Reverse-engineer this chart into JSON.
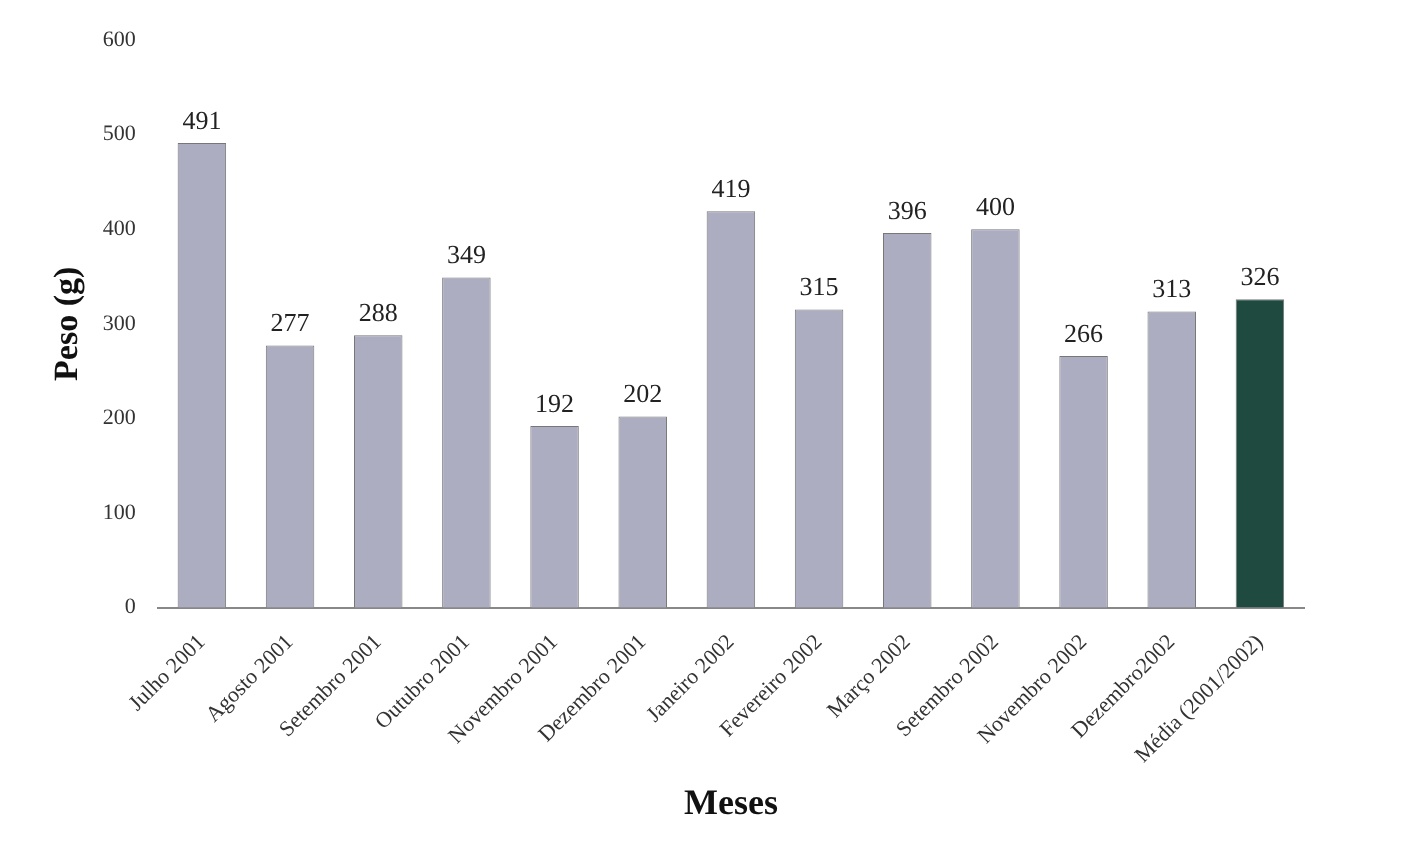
{
  "chart_data": {
    "type": "bar",
    "xlabel": "Meses",
    "ylabel": "Peso (g)",
    "categories": [
      "Julho 2001",
      "Agosto 2001",
      "Setembro 2001",
      "Outubro 2001",
      "Novembro 2001",
      "Dezembro 2001",
      "Janeiro 2002",
      "Fevereiro 2002",
      "Março 2002",
      "Setembro 2002",
      "Novembro 2002",
      "Dezembro2002",
      "Média (2001/2002)"
    ],
    "values": [
      491,
      277,
      288,
      349,
      192,
      202,
      419,
      315,
      396,
      400,
      266,
      313,
      326
    ],
    "colors": [
      "#adadc2",
      "#adadc2",
      "#adadc2",
      "#adadc2",
      "#adadc2",
      "#adadc2",
      "#adadc2",
      "#adadc2",
      "#adadc2",
      "#adadc2",
      "#adadc2",
      "#adadc2",
      "#1e4a40"
    ],
    "ylim": [
      0,
      600
    ],
    "yticks": [
      0,
      100,
      200,
      300,
      400,
      500,
      600
    ],
    "data_labels": true,
    "grid": false,
    "legend": false
  }
}
